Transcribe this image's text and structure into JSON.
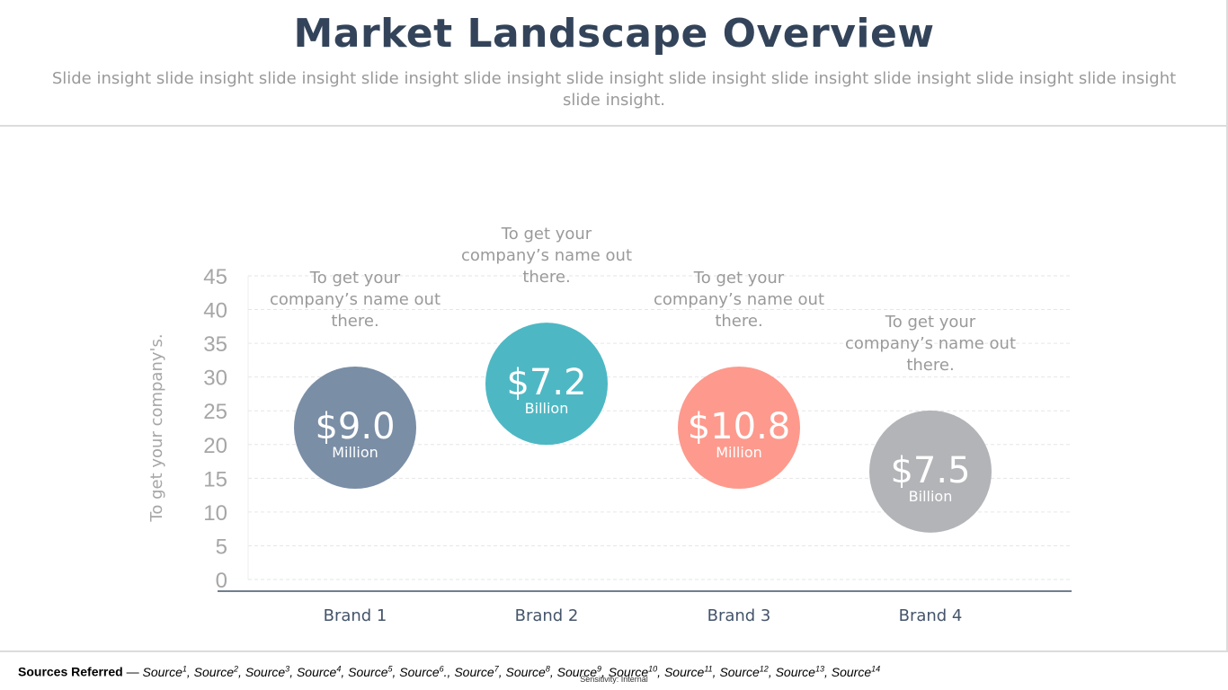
{
  "slide": {
    "title": "Market Landscape Overview",
    "subtitle": "Slide insight slide insight slide insight slide insight slide insight slide insight slide insight slide insight slide insight slide insight slide insight slide insight."
  },
  "chart_data": {
    "type": "scatter",
    "title": "",
    "xlabel": "",
    "ylabel": "To get your company's.",
    "ylim": [
      0,
      45
    ],
    "yticks": [
      0,
      5,
      10,
      15,
      20,
      25,
      30,
      35,
      40,
      45
    ],
    "grid": true,
    "categories": [
      "Brand 1",
      "Brand 2",
      "Brand 3",
      "Brand 4"
    ],
    "values": [
      22.5,
      29,
      22.5,
      16
    ],
    "bubble_labels": [
      "$9.0",
      "$7.2",
      "$10.8",
      "$7.5"
    ],
    "bubble_units": [
      "Million",
      "Billion",
      "Million",
      "Billion"
    ],
    "annotations": [
      [
        "To get your",
        "company’s name out",
        "there."
      ],
      [
        "To get your",
        "company’s name out",
        "there."
      ],
      [
        "To get your",
        "company’s name out",
        "there."
      ],
      [
        "To get your",
        "company’s name out",
        "there."
      ]
    ],
    "colors": [
      "#7a8ea6",
      "#4db8c4",
      "#fd9a8d",
      "#b3b4b8"
    ]
  },
  "footer": {
    "sources_label": "Sources Referred",
    "sources_dash": " — ",
    "sources": [
      "Source",
      "Source",
      "Source",
      "Source",
      "Source",
      "Source",
      "Source",
      "Source",
      "Source",
      "Source",
      "Source",
      "Source",
      "Source",
      "Source"
    ],
    "source_marks": [
      "1",
      "2",
      "3",
      "4",
      "5",
      "6",
      "7",
      "8",
      "9",
      "10",
      "11",
      "12",
      "13",
      "14"
    ],
    "source_suffixes": [
      "",
      "",
      "",
      "",
      "",
      ".",
      "",
      "",
      "",
      "",
      "",
      "",
      "",
      ""
    ],
    "sensitivity": "Sensitivity: Internal"
  }
}
